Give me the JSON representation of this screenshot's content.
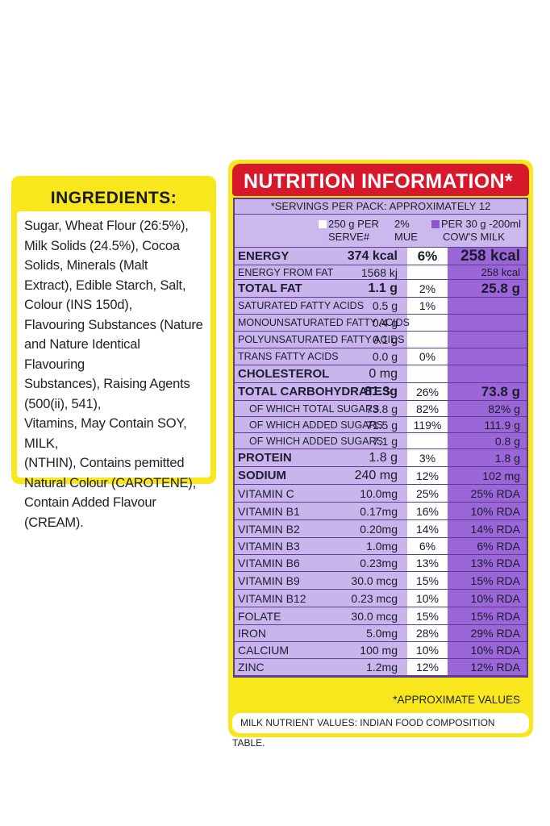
{
  "ingredients": {
    "title": "INGREDIENTS:",
    "text": "Sugar, Wheat Flour (26:5%),\nMilk Solids (24.5%), Cocoa\nSolids, Minerals (Malt\nExtract), Edible Starch, Salt,\nColour (INS 150d),\nFlavouring Substances (Nature\nand Nature Identical Flavouring\nSubstances), Raising Agents\n(500(ii), 541),\nVitamins, May Contain SOY, MILK,\n(NTHIN), Contains pemitted\nNatural Colour (CAROTENE),\nContain Added Flavour (CREAM)."
  },
  "nutrition": {
    "title": "NUTRITION INFORMATION*",
    "servings": "*SERVINGS PER PACK: APPROXIMATELY 12",
    "header": {
      "col1_line1": "250 g PER",
      "col1_line2": "SERVE#",
      "col2_line1": "2%",
      "col2_line2": "MUE",
      "col3_line1": "PER 30 g -200ml",
      "col3_line2": "COW'S MILK"
    },
    "rows": [
      {
        "label": "ENERGY",
        "v1": "374 kcal",
        "v2": "6%",
        "v3": "258 kcal"
      },
      {
        "label": "ENERGY FROM FAT",
        "v1": "1568 kj",
        "v2": "",
        "v3": "258 kcal"
      },
      {
        "label": "TOTAL FAT",
        "v1": "1.1 g",
        "v2": "2%",
        "v3": "25.8 g"
      },
      {
        "label": "SATURATED FATTY ACIDS",
        "v1": "0.5 g",
        "v2": "1%",
        "v3": ""
      },
      {
        "label": "MONOUNSATURATED FATTY ACIDS",
        "v1": "0.4 g",
        "v2": "",
        "v3": ""
      },
      {
        "label": "POLYUNSATURATED FATTY ACIDS",
        "v1": "0.1 g",
        "v2": "",
        "v3": ""
      },
      {
        "label": "TRANS FATTY ACIDS",
        "v1": "0.0 g",
        "v2": "0%",
        "v3": ""
      },
      {
        "label": "CHOLESTEROL",
        "v1": "0 mg",
        "v2": "",
        "v3": ""
      },
      {
        "label": "TOTAL CARBOHYDRATES",
        "v1": "81.3g",
        "v2": "26%",
        "v3": "73.8 g"
      },
      {
        "label": "OF WHICH TOTAL SUGARS",
        "v1": "73.8 g",
        "v2": "82%",
        "v3": "82% g"
      },
      {
        "label": "OF WHICH ADDED SUGARS",
        "v1": "71.5 g",
        "v2": "119%",
        "v3": "111.9 g"
      },
      {
        "label": "OF WHICH ADDED SUGARS",
        "v1": "7.1 g",
        "v2": "",
        "v3": "0.8 g"
      },
      {
        "label": "PROTEIN",
        "v1": "1.8 g",
        "v2": "3%",
        "v3": "1.8 g"
      },
      {
        "label": "SODIUM",
        "v1": "240 mg",
        "v2": "12%",
        "v3": "102 mg"
      },
      {
        "label": "VITAMIN C",
        "v1": "10.0mg",
        "v2": "25%",
        "v3": "25% RDA"
      },
      {
        "label": "VITAMIN B1",
        "v1": "0.17mg",
        "v2": "16%",
        "v3": "10% RDA"
      },
      {
        "label": "VITAMIN B2",
        "v1": "0.20mg",
        "v2": "14%",
        "v3": "14% RDA"
      },
      {
        "label": "VITAMIN B3",
        "v1": "1.0mg",
        "v2": "6%",
        "v3": "6% RDA"
      },
      {
        "label": "VITAMIN B6",
        "v1": "0.23mg",
        "v2": "13%",
        "v3": "13% RDA"
      },
      {
        "label": "VITAMIN B9",
        "v1": "30.0 mcg",
        "v2": "15%",
        "v3": "15% RDA"
      },
      {
        "label": "VITAMIN B12",
        "v1": "0.23 mcg",
        "v2": "10%",
        "v3": "10% RDA"
      },
      {
        "label": "FOLATE",
        "v1": "30.0 mcg",
        "v2": "15%",
        "v3": "15% RDA"
      },
      {
        "label": "IRON",
        "v1": "5.0mg",
        "v2": "28%",
        "v3": "29% RDA"
      },
      {
        "label": "CALCIUM",
        "v1": "100 mg",
        "v2": "10%",
        "v3": "10% RDA"
      },
      {
        "label": "ZINC",
        "v1": "1.2mg",
        "v2": "12%",
        "v3": "12% RDA"
      }
    ],
    "footnote": "*APPROXIMATE VALUES",
    "milk_note": "MILK NUTRIENT VALUES: INDIAN FOOD COMPOSITION TABLE."
  }
}
